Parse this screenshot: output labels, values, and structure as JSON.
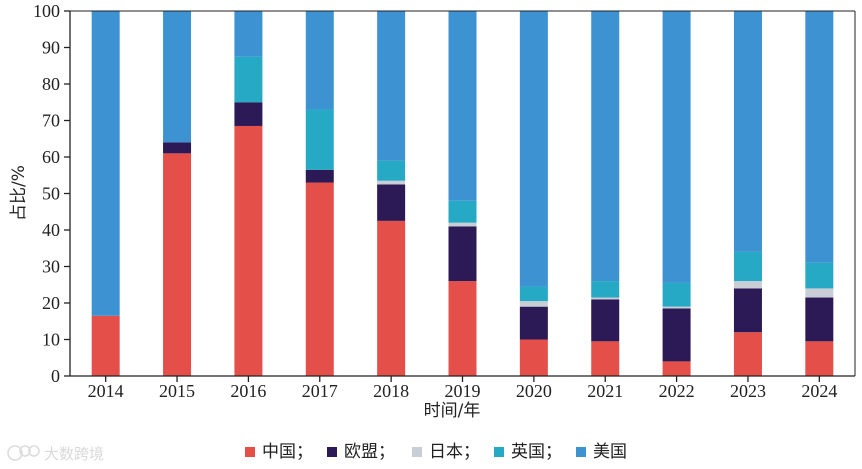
{
  "chart_data": {
    "type": "bar",
    "stacked": true,
    "title": "",
    "xlabel": "时间/年",
    "ylabel": "占比/%",
    "ylim": [
      0,
      100
    ],
    "yticks": [
      0,
      10,
      20,
      30,
      40,
      50,
      60,
      70,
      80,
      90,
      100
    ],
    "categories": [
      "2014",
      "2015",
      "2016",
      "2017",
      "2018",
      "2019",
      "2020",
      "2021",
      "2022",
      "2023",
      "2024"
    ],
    "series": [
      {
        "name": "中国",
        "color": "#e45049",
        "values": [
          16.5,
          61,
          68.5,
          53,
          42.5,
          26,
          10,
          9.5,
          4,
          12,
          9.5
        ]
      },
      {
        "name": "欧盟",
        "color": "#2b1a55",
        "values": [
          0,
          3,
          6.5,
          3.5,
          10,
          15,
          9,
          11.5,
          14.5,
          12,
          12
        ]
      },
      {
        "name": "日本",
        "color": "#c9ced6",
        "values": [
          0,
          0,
          0,
          0,
          1,
          1,
          1.5,
          0.5,
          0.5,
          2,
          2.5
        ]
      },
      {
        "name": "英国",
        "color": "#25a9c4",
        "values": [
          0,
          0,
          12.5,
          16.5,
          5.5,
          6,
          4,
          4.5,
          6.5,
          8,
          7
        ]
      },
      {
        "name": "美国",
        "color": "#3d93d1",
        "values": [
          83.5,
          36,
          12.5,
          27,
          41,
          52,
          75.5,
          74,
          74.5,
          66,
          69
        ]
      }
    ],
    "legend": {
      "position": "bottom",
      "separator": "；",
      "items": [
        "中国；",
        "欧盟；",
        "日本；",
        "英国；",
        "美国"
      ]
    },
    "grid": false
  },
  "watermark": {
    "text": "大数跨境"
  }
}
